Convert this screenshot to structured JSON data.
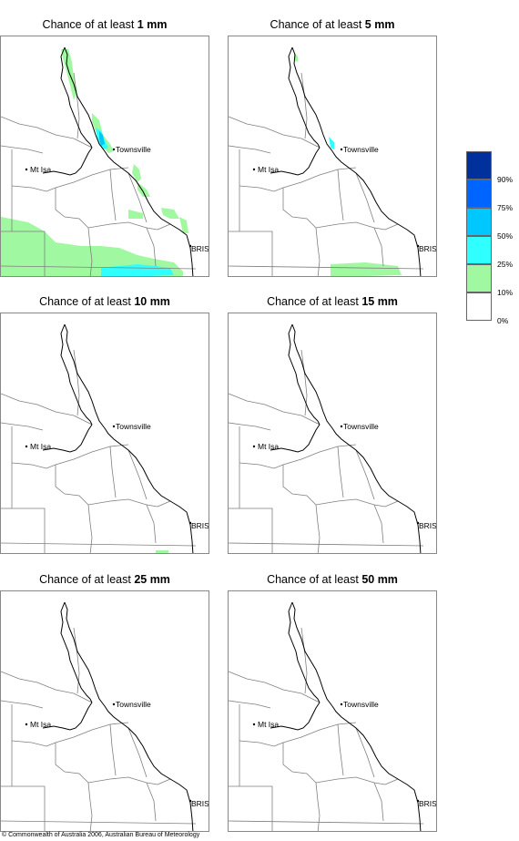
{
  "panels": [
    {
      "title_prefix": "Chance of at least",
      "threshold": "1 mm",
      "id": "p1"
    },
    {
      "title_prefix": "Chance of at least",
      "threshold": "5 mm",
      "id": "p5"
    },
    {
      "title_prefix": "Chance of at least",
      "threshold": "10 mm",
      "id": "p10"
    },
    {
      "title_prefix": "Chance of at least",
      "threshold": "15 mm",
      "id": "p15"
    },
    {
      "title_prefix": "Chance of at least",
      "threshold": "25 mm",
      "id": "p25"
    },
    {
      "title_prefix": "Chance of at least",
      "threshold": "50 mm",
      "id": "p50"
    }
  ],
  "places": {
    "townsville": "Townsville",
    "mt_isa": "Mt Isa",
    "brisbane": "BRIS"
  },
  "legend": {
    "labels": [
      "90%",
      "75%",
      "50%",
      "25%",
      "10%",
      "0%"
    ],
    "colors": [
      "#00309c",
      "#0064ff",
      "#00c8ff",
      "#30ffff",
      "#a0f8a0",
      "#ffffff"
    ]
  },
  "colors": {
    "coast": "#000000",
    "boundary": "#7f7f7f",
    "band_10_25": "#a0f8a0",
    "band_25_50": "#30ffff",
    "band_50_75": "#00c8ff"
  },
  "copyright": "© Commonwealth of Australia 2006, Australian Bureau of Meteorology"
}
